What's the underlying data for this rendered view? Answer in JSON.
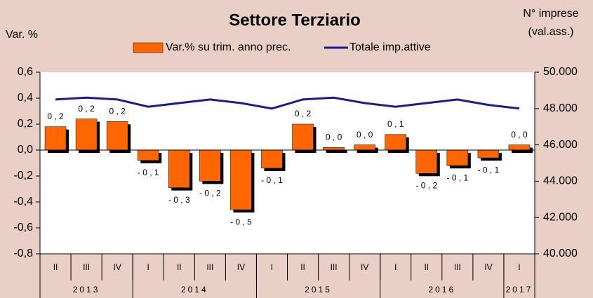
{
  "chart_data": {
    "type": "bar_line",
    "title": "Settore Terziario",
    "y_label": "Var. %",
    "y2_label": [
      "N° imprese",
      "(val.ass.)"
    ],
    "categories": [
      "II",
      "III",
      "IV",
      "I",
      "II",
      "III",
      "IV",
      "I",
      "II",
      "III",
      "IV",
      "I",
      "II",
      "III",
      "IV",
      "I"
    ],
    "year_groups": [
      {
        "label": "2013",
        "span": 3
      },
      {
        "label": "2014",
        "span": 4
      },
      {
        "label": "2015",
        "span": 4
      },
      {
        "label": "2016",
        "span": 4
      },
      {
        "label": "2017",
        "span": 1
      }
    ],
    "series": [
      {
        "name": "Var.% su trim. anno prec.",
        "type": "bar",
        "color": "#ff6600",
        "values": [
          0.18,
          0.24,
          0.22,
          -0.08,
          -0.29,
          -0.24,
          -0.46,
          -0.14,
          0.2,
          0.02,
          0.04,
          0.12,
          -0.18,
          -0.12,
          -0.06,
          0.04
        ],
        "value_labels": [
          "0 , 2",
          "0 , 2",
          "0 , 2",
          "- 0 , 1",
          "- 0 , 3",
          "- 0 , 2",
          "- 0 , 5",
          "- 0 , 1",
          "0 , 2",
          "0 , 0",
          "0 , 0",
          "0 , 1",
          "- 0 , 2",
          "- 0 , 1",
          "- 0 , 1",
          "0 , 0"
        ]
      },
      {
        "name": "Totale imp.attive",
        "type": "line",
        "color": "#1c1c8c",
        "axis": "y2",
        "values": [
          48500,
          48600,
          48500,
          48100,
          48300,
          48500,
          48300,
          48000,
          48500,
          48600,
          48300,
          48100,
          48300,
          48500,
          48200,
          48000
        ]
      }
    ],
    "ylim": [
      -0.8,
      0.6
    ],
    "yticks": [
      {
        "value": -0.8,
        "label": "-0,8"
      },
      {
        "value": -0.6,
        "label": "-0,6"
      },
      {
        "value": -0.4,
        "label": "-0,4"
      },
      {
        "value": -0.2,
        "label": "-0,2"
      },
      {
        "value": 0,
        "label": "0,0"
      },
      {
        "value": 0.2,
        "label": "0,2"
      },
      {
        "value": 0.4,
        "label": "0,4"
      },
      {
        "value": 0.6,
        "label": "0,6"
      }
    ],
    "y2lim": [
      40000,
      50000
    ],
    "y2ticks": [
      {
        "value": 40000,
        "label": "40.000"
      },
      {
        "value": 42000,
        "label": "42.000"
      },
      {
        "value": 44000,
        "label": "44.000"
      },
      {
        "value": 46000,
        "label": "46.000"
      },
      {
        "value": 48000,
        "label": "48.000"
      },
      {
        "value": 50000,
        "label": "50.000"
      }
    ]
  }
}
